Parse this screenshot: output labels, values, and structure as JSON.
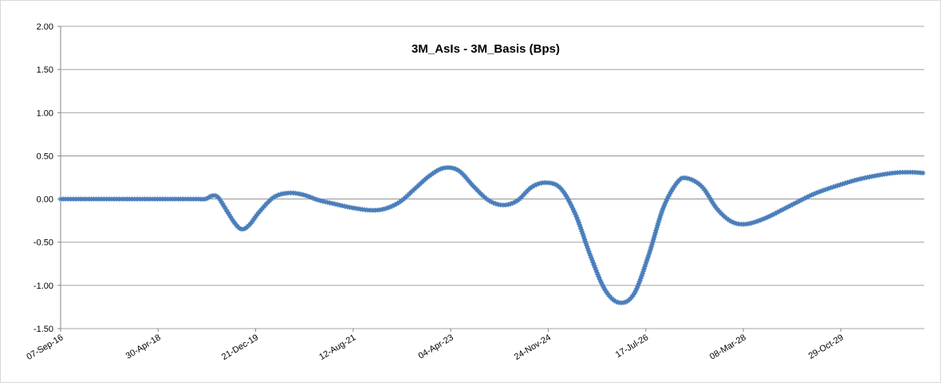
{
  "chart_data": {
    "type": "line",
    "title": "3M_AsIs - 3M_Basis (Bps)",
    "xlabel": "",
    "ylabel": "",
    "ylim": [
      -1.5,
      2.0
    ],
    "y_ticks": [
      "2.00",
      "1.50",
      "1.00",
      "0.50",
      "0.00",
      "-0.50",
      "-1.00",
      "-1.50"
    ],
    "y_tick_values": [
      2.0,
      1.5,
      1.0,
      0.5,
      0.0,
      -0.5,
      -1.0,
      -1.5
    ],
    "x_ticks": [
      "07-Sep-16",
      "30-Apr-18",
      "21-Dec-19",
      "12-Aug-21",
      "04-Apr-23",
      "24-Nov-24",
      "17-Jul-26",
      "08-Mar-28",
      "29-Oct-29"
    ],
    "x_range": [
      "2016-09-07",
      "2031-06-20"
    ],
    "grid": true,
    "legend": "none",
    "series": [
      {
        "color": "#4a7ebb",
        "marker": "star",
        "points": [
          [
            "2016-09-07",
            0.0
          ],
          [
            "2017-06-01",
            0.0
          ],
          [
            "2018-03-01",
            0.0
          ],
          [
            "2018-12-01",
            0.0
          ],
          [
            "2019-01-15",
            0.0
          ],
          [
            "2019-03-01",
            0.0
          ],
          [
            "2019-04-15",
            0.04
          ],
          [
            "2019-05-20",
            0.02
          ],
          [
            "2019-07-01",
            -0.1
          ],
          [
            "2019-09-01",
            -0.28
          ],
          [
            "2019-10-15",
            -0.35
          ],
          [
            "2019-12-01",
            -0.3
          ],
          [
            "2020-02-01",
            -0.15
          ],
          [
            "2020-05-01",
            0.02
          ],
          [
            "2020-08-01",
            0.07
          ],
          [
            "2020-11-01",
            0.05
          ],
          [
            "2021-02-01",
            -0.01
          ],
          [
            "2021-05-01",
            -0.05
          ],
          [
            "2021-09-01",
            -0.1
          ],
          [
            "2022-01-01",
            -0.13
          ],
          [
            "2022-04-01",
            -0.11
          ],
          [
            "2022-07-01",
            -0.03
          ],
          [
            "2022-10-01",
            0.12
          ],
          [
            "2023-01-01",
            0.27
          ],
          [
            "2023-04-01",
            0.36
          ],
          [
            "2023-07-01",
            0.33
          ],
          [
            "2023-10-01",
            0.15
          ],
          [
            "2024-01-01",
            -0.01
          ],
          [
            "2024-04-01",
            -0.07
          ],
          [
            "2024-07-01",
            -0.02
          ],
          [
            "2024-10-01",
            0.14
          ],
          [
            "2025-01-01",
            0.19
          ],
          [
            "2025-04-01",
            0.12
          ],
          [
            "2025-07-01",
            -0.18
          ],
          [
            "2025-10-01",
            -0.65
          ],
          [
            "2026-01-01",
            -1.05
          ],
          [
            "2026-04-01",
            -1.2
          ],
          [
            "2026-07-01",
            -1.1
          ],
          [
            "2026-10-01",
            -0.65
          ],
          [
            "2027-01-01",
            -0.1
          ],
          [
            "2027-04-01",
            0.2
          ],
          [
            "2027-06-01",
            0.24
          ],
          [
            "2027-09-01",
            0.14
          ],
          [
            "2027-12-01",
            -0.11
          ],
          [
            "2028-03-01",
            -0.26
          ],
          [
            "2028-06-01",
            -0.29
          ],
          [
            "2028-10-01",
            -0.22
          ],
          [
            "2029-03-01",
            -0.08
          ],
          [
            "2029-08-01",
            0.06
          ],
          [
            "2030-01-01",
            0.16
          ],
          [
            "2030-06-01",
            0.24
          ],
          [
            "2030-12-01",
            0.3
          ],
          [
            "2031-04-01",
            0.31
          ],
          [
            "2031-06-20",
            0.3
          ]
        ]
      }
    ]
  }
}
